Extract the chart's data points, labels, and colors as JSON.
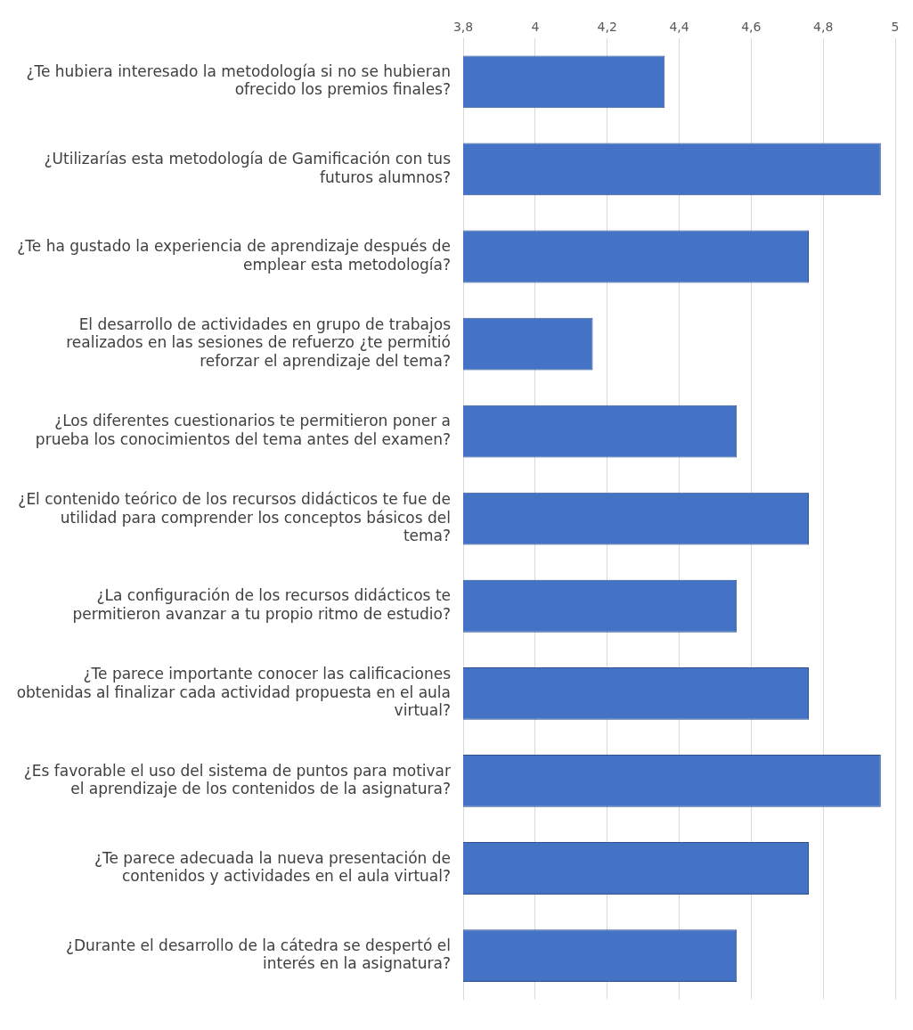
{
  "chart_data": {
    "type": "bar",
    "orientation": "horizontal",
    "categories": [
      "¿Te hubiera interesado la metodología si no se hubieran ofrecido los premios finales?",
      "¿Utilizarías esta metodología de Gamificación con tus futuros alumnos?",
      "¿Te ha gustado la experiencia de aprendizaje después de emplear esta metodología?",
      "El desarrollo de actividades en grupo de trabajos realizados en las sesiones de refuerzo ¿te permitió reforzar el aprendizaje del tema?",
      "¿Los diferentes cuestionarios te permitieron poner a prueba los conocimientos del tema antes del examen?",
      "¿El contenido teórico de los recursos didácticos te fue de utilidad para comprender los conceptos básicos del tema?",
      "¿La configuración de los recursos didácticos te permitieron avanzar a tu propio ritmo de estudio?",
      "¿Te parece importante conocer las calificaciones obtenidas al finalizar cada actividad propuesta en el aula virtual?",
      "¿Es favorable el uso del sistema de puntos para motivar el aprendizaje de los contenidos de la asignatura?",
      "¿Te parece adecuada la nueva presentación de contenidos y actividades en el aula virtual?",
      "¿Durante el desarrollo de la cátedra se despertó el interés en la asignatura?"
    ],
    "values": [
      4.36,
      4.96,
      4.76,
      4.16,
      4.56,
      4.76,
      4.56,
      4.76,
      4.96,
      4.76,
      4.56
    ],
    "color": "#4472c4",
    "xlim": [
      3.8,
      5
    ],
    "xticks": [
      {
        "value": 3.8,
        "label": "3,8"
      },
      4,
      {
        "value": 4.2,
        "label": "4,2"
      },
      {
        "value": 4.4,
        "label": "4,4"
      },
      {
        "value": 4.6,
        "label": "4,6"
      },
      {
        "value": 4.8,
        "label": "4,8"
      },
      5
    ],
    "grid": "x"
  }
}
